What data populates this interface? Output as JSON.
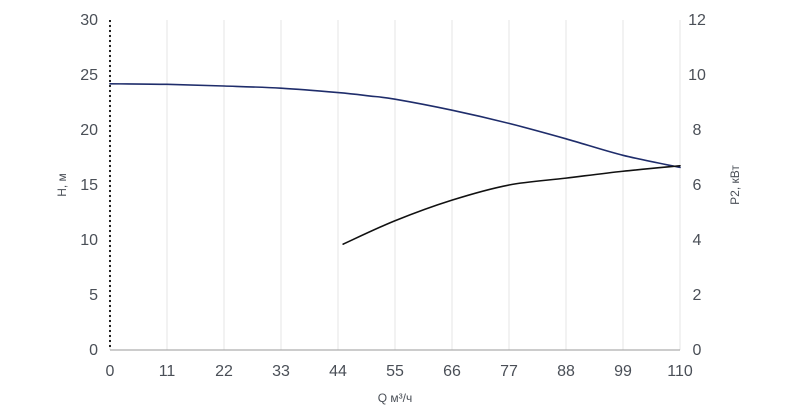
{
  "chart_data": {
    "type": "line",
    "title": "",
    "xlabel": "Q м³/ч",
    "ylabel_left": "H, м",
    "ylabel_right": "P2, кВт",
    "xlim": [
      0,
      110
    ],
    "ylim_left": [
      0,
      30
    ],
    "ylim_right": [
      0,
      12
    ],
    "x_ticks": [
      "0",
      "11",
      "22",
      "33",
      "44",
      "55",
      "66",
      "77",
      "88",
      "99",
      "110"
    ],
    "y_left_ticks": [
      "0",
      "5",
      "10",
      "15",
      "20",
      "25",
      "30"
    ],
    "y_right_ticks": [
      "0",
      "2",
      "4",
      "6",
      "8",
      "10",
      "12"
    ],
    "grid": "vertical",
    "legend": "none",
    "series": [
      {
        "axis": "left",
        "color": "#1f2d6b",
        "x": [
          0,
          11,
          22,
          33,
          44,
          50,
          55,
          66,
          77,
          88,
          99,
          110
        ],
        "y": [
          24.2,
          24.15,
          24.0,
          23.8,
          23.4,
          23.1,
          22.8,
          21.8,
          20.6,
          19.2,
          17.7,
          16.6
        ]
      },
      {
        "axis": "right",
        "color": "#111111",
        "x": [
          45,
          55,
          66,
          77,
          88,
          99,
          110
        ],
        "y": [
          3.85,
          4.7,
          5.45,
          6.0,
          6.25,
          6.5,
          6.7
        ]
      }
    ]
  }
}
